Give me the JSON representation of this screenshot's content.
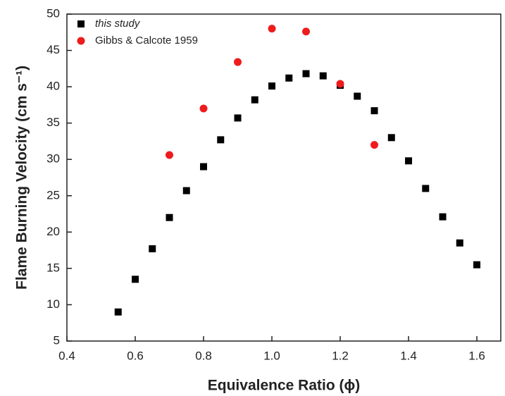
{
  "chart_data": {
    "type": "scatter",
    "xlabel": "Equivalence Ratio (ϕ)",
    "ylabel": "Flame Burning Velocity (cm s⁻¹)",
    "xlim": [
      0.4,
      1.67
    ],
    "ylim": [
      5,
      50
    ],
    "xticks": [
      0.4,
      0.6,
      0.8,
      {
        "value": 1.0,
        "label": "1.0"
      },
      1.2,
      1.4,
      1.6
    ],
    "yticks": [
      5,
      10,
      15,
      20,
      25,
      30,
      35,
      40,
      45,
      50
    ],
    "legend": "top-left",
    "series": [
      {
        "name": "this study",
        "color": "#000000",
        "marker": "square",
        "x": [
          0.55,
          0.6,
          0.65,
          0.7,
          0.75,
          0.8,
          0.85,
          0.9,
          0.95,
          1.0,
          1.05,
          1.1,
          1.15,
          1.2,
          1.25,
          1.3,
          1.35,
          1.4,
          1.45,
          1.5,
          1.55,
          1.6
        ],
        "values": [
          9.0,
          13.5,
          17.7,
          22.0,
          25.7,
          29.0,
          32.7,
          35.7,
          38.2,
          40.1,
          41.2,
          41.8,
          41.5,
          40.2,
          38.7,
          36.7,
          33.0,
          29.8,
          26.0,
          22.1,
          18.5,
          15.5
        ]
      },
      {
        "name": "Gibbs & Calcote 1959",
        "color": "#ee1c1c",
        "marker": "circle",
        "x": [
          0.7,
          0.8,
          0.9,
          1.0,
          1.1,
          1.2,
          1.3
        ],
        "values": [
          30.6,
          37.0,
          43.4,
          48.0,
          47.6,
          40.4,
          32.0
        ]
      }
    ]
  }
}
